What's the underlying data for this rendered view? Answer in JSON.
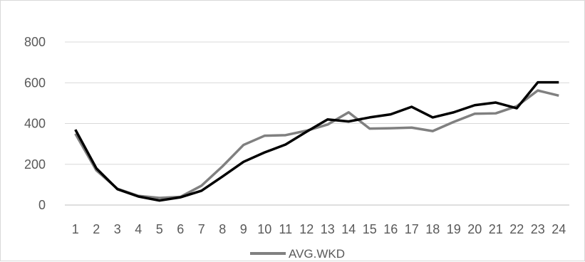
{
  "chart_data": {
    "type": "line",
    "x": [
      1,
      2,
      3,
      4,
      5,
      6,
      7,
      8,
      9,
      10,
      11,
      12,
      13,
      14,
      15,
      16,
      17,
      18,
      19,
      20,
      21,
      22,
      23,
      24
    ],
    "categories": [
      "1",
      "2",
      "3",
      "4",
      "5",
      "6",
      "7",
      "8",
      "9",
      "10",
      "11",
      "12",
      "13",
      "14",
      "15",
      "16",
      "17",
      "18",
      "19",
      "20",
      "21",
      "22",
      "23",
      "24"
    ],
    "series": [
      {
        "name": "AVG.WKD",
        "color": "#808080",
        "values": [
          350,
          170,
          80,
          45,
          35,
          40,
          95,
          190,
          295,
          340,
          343,
          365,
          395,
          455,
          375,
          377,
          380,
          363,
          408,
          448,
          450,
          485,
          562,
          537
        ]
      },
      {
        "name": "",
        "color": "#000000",
        "values": [
          370,
          180,
          78,
          42,
          22,
          38,
          70,
          140,
          212,
          258,
          297,
          360,
          420,
          410,
          430,
          445,
          482,
          430,
          455,
          490,
          503,
          475,
          602,
          602
        ]
      }
    ],
    "yticks": [
      "0",
      "200",
      "400",
      "600",
      "800"
    ],
    "ylim": [
      0,
      800
    ],
    "grid": true,
    "legend_position": "bottom",
    "legend": [
      "AVG.WKD"
    ],
    "title": "",
    "xlabel": "",
    "ylabel": ""
  }
}
